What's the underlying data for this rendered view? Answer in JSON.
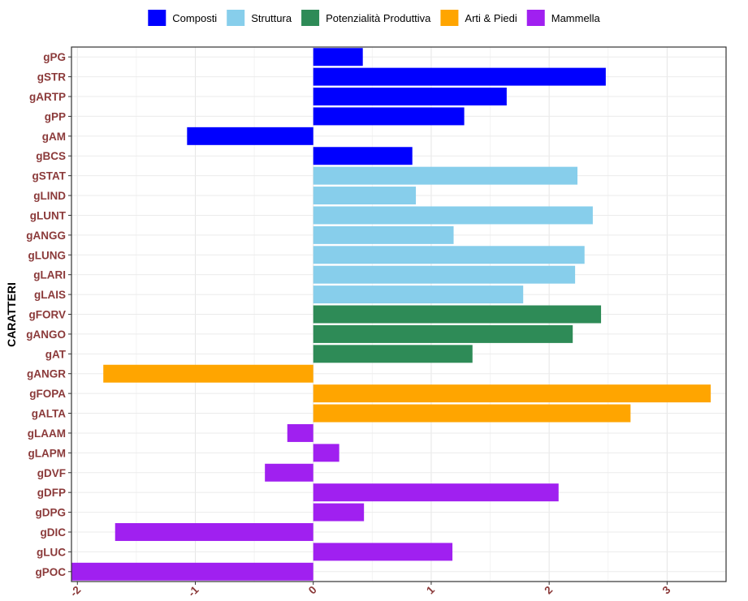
{
  "chart_data": {
    "type": "bar",
    "orientation": "horizontal",
    "ylabel": "CARATTERI",
    "xlim": [
      -2.05,
      3.5
    ],
    "xticks": [
      -2,
      -1,
      0,
      1,
      2,
      3
    ],
    "grid": true,
    "legend_position": "top",
    "legend": [
      {
        "name": "Composti",
        "color": "#0000ff"
      },
      {
        "name": "Struttura",
        "color": "#87ceeb"
      },
      {
        "name": "Potenzialità Produttiva",
        "color": "#2e8b57"
      },
      {
        "name": "Arti & Piedi",
        "color": "#ffa500"
      },
      {
        "name": "Mammella",
        "color": "#a020f0"
      }
    ],
    "categories": [
      "gPG",
      "gSTR",
      "gARTP",
      "gPP",
      "gAM",
      "gBCS",
      "gSTAT",
      "gLIND",
      "gLUNT",
      "gANGG",
      "gLUNG",
      "gLARI",
      "gLAIS",
      "gFORV",
      "gANGO",
      "gAT",
      "gANGR",
      "gFOPA",
      "gALTA",
      "gLAAM",
      "gLAPM",
      "gDVF",
      "gDFP",
      "gDPG",
      "gDIC",
      "gLUC",
      "gPOC"
    ],
    "groups": [
      0,
      0,
      0,
      0,
      0,
      0,
      1,
      1,
      1,
      1,
      1,
      1,
      1,
      2,
      2,
      2,
      3,
      3,
      3,
      4,
      4,
      4,
      4,
      4,
      4,
      4,
      4
    ],
    "values": [
      0.42,
      2.48,
      1.64,
      1.28,
      -1.07,
      0.84,
      2.24,
      0.87,
      2.37,
      1.19,
      2.3,
      2.22,
      1.78,
      2.44,
      2.2,
      1.35,
      -1.78,
      3.37,
      2.69,
      -0.22,
      0.22,
      -0.41,
      2.08,
      0.43,
      -1.68,
      1.18,
      -2.05
    ]
  }
}
